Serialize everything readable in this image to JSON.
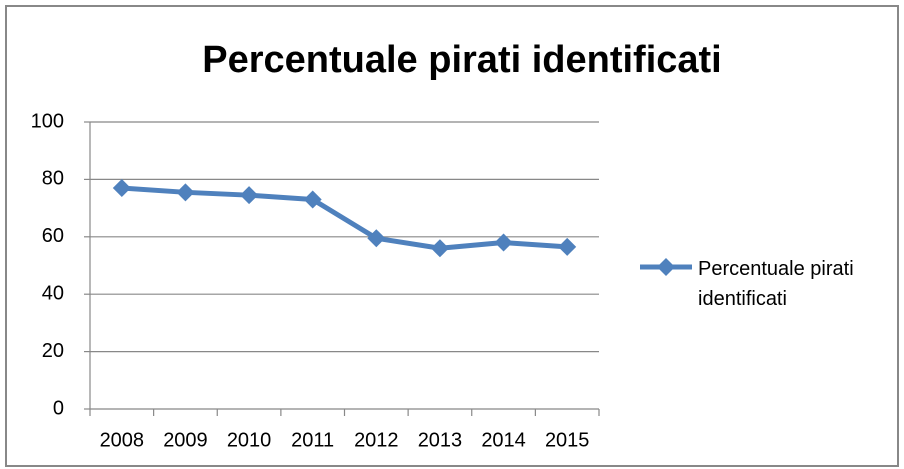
{
  "chart_data": {
    "type": "line",
    "title": "Percentuale pirati identificati",
    "categories": [
      "2008",
      "2009",
      "2010",
      "2011",
      "2012",
      "2013",
      "2014",
      "2015"
    ],
    "series": [
      {
        "name": "Percentuale pirati identificati",
        "color": "#4f81bd",
        "values": [
          77,
          75.5,
          74.5,
          73,
          59.5,
          56,
          58,
          56.5
        ]
      }
    ],
    "ylim": [
      0,
      100
    ],
    "yticks": [
      0,
      20,
      40,
      60,
      80,
      100
    ],
    "grid": true,
    "legend": "right"
  }
}
